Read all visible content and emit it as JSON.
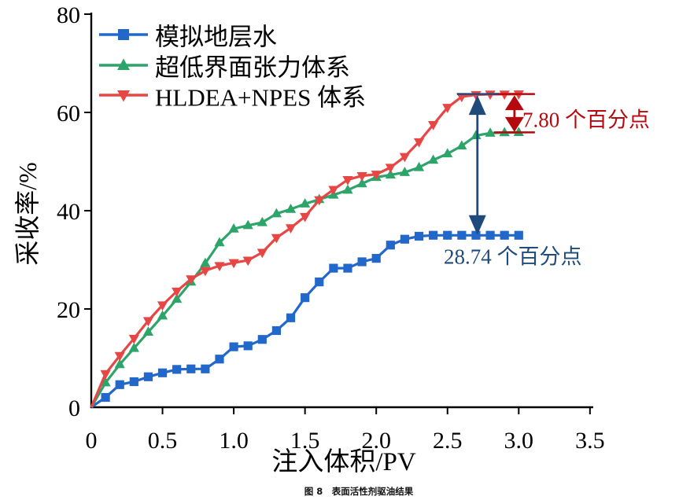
{
  "figure": {
    "background": "#ffffff",
    "caption": "图 8　表面活性剂驱油结果"
  },
  "colors": {
    "axis": "#000000",
    "text": "#000000"
  },
  "chart_data": {
    "type": "line",
    "title": "",
    "xlabel": "注入体积/PV",
    "ylabel": "采收率/%",
    "xlim": [
      0,
      3.5
    ],
    "ylim": [
      0,
      80
    ],
    "grid": false,
    "legend_position": "upper-left",
    "xticks": [
      0,
      0.5,
      1.0,
      1.5,
      2.0,
      2.5,
      3.0,
      3.5
    ],
    "xtick_labels": [
      "0",
      "0.5",
      "1.0",
      "1.5",
      "2.0",
      "2.5",
      "3.0",
      "3.5"
    ],
    "yticks": [
      0,
      20,
      40,
      60,
      80
    ],
    "ytick_labels": [
      "0",
      "20",
      "40",
      "60",
      "80"
    ],
    "x": [
      0,
      0.1,
      0.2,
      0.3,
      0.4,
      0.5,
      0.6,
      0.7,
      0.8,
      0.9,
      1.0,
      1.1,
      1.2,
      1.3,
      1.4,
      1.5,
      1.6,
      1.7,
      1.8,
      1.9,
      2.0,
      2.1,
      2.2,
      2.3,
      2.4,
      2.5,
      2.6,
      2.7,
      2.8,
      2.9,
      3.0
    ],
    "series": [
      {
        "id": "simulated-formation-water",
        "name": "模拟地层水",
        "color": "#2268cb",
        "marker": "square",
        "values": [
          0,
          2.0,
          4.6,
          5.2,
          6.2,
          7.0,
          7.7,
          7.8,
          7.8,
          9.8,
          12.3,
          12.5,
          13.8,
          15.6,
          18.2,
          22.3,
          25.5,
          28.3,
          28.3,
          29.6,
          30.3,
          33.0,
          34.2,
          34.8,
          35.0,
          35.0,
          35.0,
          35.0,
          35.0,
          35.0,
          35.0
        ]
      },
      {
        "id": "ultra-low-ift-system",
        "name": "超低界面张力体系",
        "color": "#2da469",
        "marker": "triangle-up",
        "values": [
          0,
          5.0,
          8.7,
          12.0,
          15.3,
          18.6,
          22.0,
          25.5,
          29.3,
          33.5,
          36.3,
          37.0,
          37.6,
          39.4,
          40.3,
          41.4,
          42.3,
          43.2,
          44.2,
          45.5,
          46.8,
          47.3,
          47.8,
          48.8,
          50.3,
          51.6,
          53.2,
          55.3,
          55.8,
          55.9,
          55.94
        ]
      },
      {
        "id": "hldea-npes-system",
        "name": "HLDEA+NPES 体系",
        "color": "#e64744",
        "marker": "triangle-down",
        "values": [
          0,
          6.8,
          10.5,
          14.0,
          17.6,
          20.8,
          23.6,
          26.1,
          27.8,
          28.8,
          29.4,
          29.9,
          31.5,
          34.5,
          36.5,
          38.8,
          42.2,
          44.3,
          46.3,
          47.1,
          47.4,
          48.8,
          51.0,
          54.0,
          57.5,
          61.0,
          63.2,
          63.6,
          63.7,
          63.7,
          63.74
        ]
      }
    ],
    "annotations": [
      {
        "id": "red-green-gap",
        "text": "7.80 个百分点",
        "color": "#b5090e",
        "x_pv": 2.97,
        "from_pct": 63.74,
        "to_pct": 55.94,
        "caps": "both"
      },
      {
        "id": "red-blue-gap",
        "text": "28.74 个百分点",
        "color": "#1f4b7c",
        "x_pv": 2.71,
        "from_pct": 63.74,
        "to_pct": 35.0,
        "caps": "top"
      }
    ]
  }
}
